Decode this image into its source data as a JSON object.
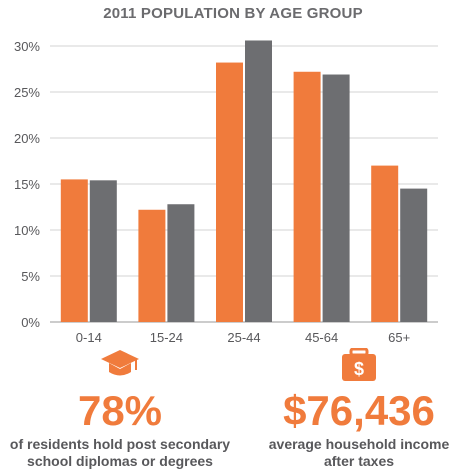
{
  "chart_data": {
    "type": "bar",
    "title": "2011 POPULATION BY AGE GROUP",
    "categories": [
      "0-14",
      "15-24",
      "25-44",
      "45-64",
      "65+"
    ],
    "series": [
      {
        "color": "#f07b3c",
        "values": [
          15.5,
          12.2,
          28.2,
          27.2,
          17.0
        ]
      },
      {
        "color": "#6d6e71",
        "values": [
          15.4,
          12.8,
          30.6,
          26.9,
          14.5
        ]
      }
    ],
    "yticks": [
      "0%",
      "5%",
      "10%",
      "15%",
      "20%",
      "25%",
      "30%"
    ],
    "ylim": [
      0,
      30
    ],
    "grid": true,
    "legend": "none"
  },
  "stats": [
    {
      "icon": "graduation-cap-icon",
      "value": "78%",
      "line1": "of residents hold post secondary",
      "line2": "school diplomas or degrees"
    },
    {
      "icon": "money-bag-icon",
      "value": "$76,436",
      "line1": "average household income",
      "line2": "after taxes",
      "icon_symbol": "$"
    }
  ]
}
